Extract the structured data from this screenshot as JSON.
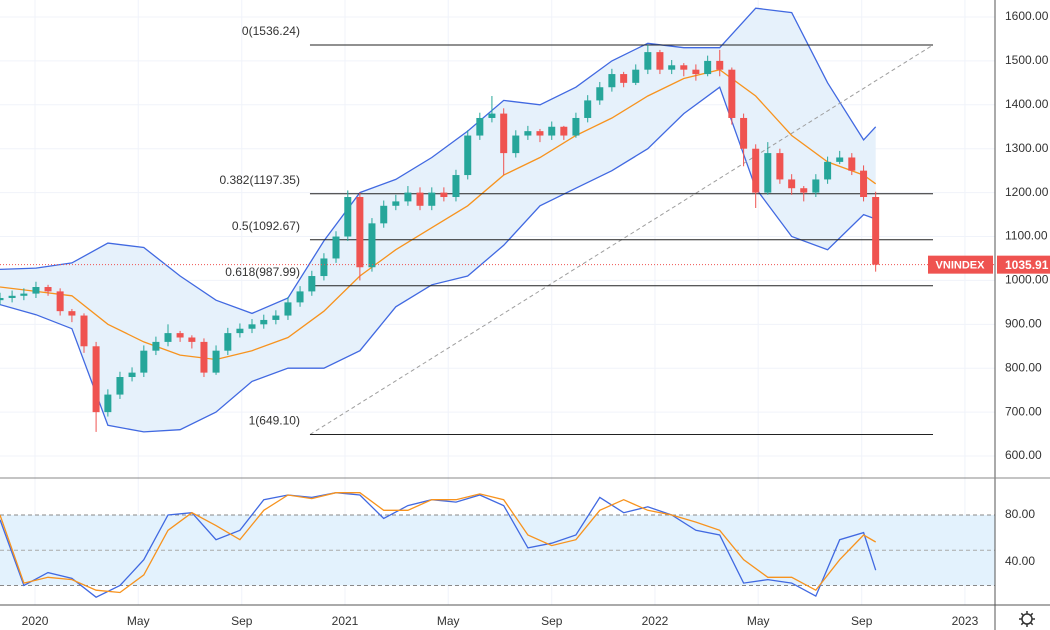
{
  "chart_data": [
    {
      "type": "candlestick",
      "symbol": "VNINDEX",
      "last_price": {
        "value": 1035.91,
        "label": "1035.91"
      },
      "up_color": "#26a69a",
      "down_color": "#ef5350",
      "xlim": [
        2019.887,
        2023.097
      ],
      "ylim": [
        550,
        1638.7
      ],
      "yticks": [
        {
          "value": 600,
          "label": "600.00"
        },
        {
          "value": 700,
          "label": "700.00"
        },
        {
          "value": 800,
          "label": "800.00"
        },
        {
          "value": 900,
          "label": "900.00"
        },
        {
          "value": 1000,
          "label": "1000.00"
        },
        {
          "value": 1100,
          "label": "1100.00"
        },
        {
          "value": 1200,
          "label": "1200.00"
        },
        {
          "value": 1300,
          "label": "1300.00"
        },
        {
          "value": 1400,
          "label": "1400.00"
        },
        {
          "value": 1500,
          "label": "1500.00"
        },
        {
          "value": 1600,
          "label": "1600.00"
        }
      ],
      "grid": true,
      "x": [
        2019.887,
        2019.926,
        2019.964,
        2020.003,
        2020.042,
        2020.081,
        2020.119,
        2020.158,
        2020.197,
        2020.235,
        2020.274,
        2020.313,
        2020.351,
        2020.39,
        2020.429,
        2020.468,
        2020.506,
        2020.545,
        2020.584,
        2020.622,
        2020.661,
        2020.7,
        2020.738,
        2020.777,
        2020.816,
        2020.855,
        2020.893,
        2020.932,
        2020.971,
        2021.009,
        2021.048,
        2021.087,
        2021.125,
        2021.164,
        2021.203,
        2021.242,
        2021.28,
        2021.319,
        2021.358,
        2021.396,
        2021.435,
        2021.474,
        2021.512,
        2021.551,
        2021.59,
        2021.629,
        2021.667,
        2021.706,
        2021.745,
        2021.783,
        2021.822,
        2021.861,
        2021.899,
        2021.938,
        2021.977,
        2022.016,
        2022.054,
        2022.093,
        2022.132,
        2022.17,
        2022.209,
        2022.248,
        2022.286,
        2022.325,
        2022.364,
        2022.403,
        2022.441,
        2022.48,
        2022.519,
        2022.557,
        2022.596,
        2022.635,
        2022.673,
        2022.712
      ],
      "open": [
        955,
        960,
        965,
        970,
        985,
        975,
        930,
        920,
        850,
        700,
        740,
        780,
        790,
        840,
        860,
        880,
        870,
        860,
        790,
        840,
        880,
        890,
        900,
        910,
        920,
        950,
        975,
        1010,
        1050,
        1100,
        1190,
        1030,
        1130,
        1170,
        1180,
        1200,
        1170,
        1200,
        1190,
        1240,
        1330,
        1370,
        1380,
        1290,
        1330,
        1340,
        1330,
        1350,
        1330,
        1370,
        1410,
        1440,
        1470,
        1450,
        1480,
        1520,
        1480,
        1490,
        1480,
        1470,
        1500,
        1480,
        1370,
        1300,
        1200,
        1290,
        1230,
        1210,
        1200,
        1230,
        1270,
        1280,
        1250,
        1190
      ],
      "high": [
        972,
        977,
        982,
        997,
        990,
        982,
        935,
        925,
        860,
        752,
        792,
        802,
        852,
        872,
        900,
        885,
        875,
        868,
        852,
        892,
        902,
        912,
        922,
        932,
        962,
        987,
        1022,
        1062,
        1112,
        1205,
        1200,
        1142,
        1182,
        1195,
        1215,
        1212,
        1212,
        1212,
        1252,
        1342,
        1382,
        1420,
        1392,
        1342,
        1352,
        1345,
        1362,
        1352,
        1382,
        1422,
        1452,
        1482,
        1475,
        1492,
        1536,
        1525,
        1502,
        1495,
        1492,
        1512,
        1525,
        1485,
        1380,
        1310,
        1315,
        1300,
        1242,
        1215,
        1242,
        1282,
        1295,
        1290,
        1262,
        1202
      ],
      "low": [
        945,
        950,
        955,
        960,
        965,
        920,
        905,
        835,
        655,
        690,
        730,
        770,
        780,
        830,
        850,
        860,
        845,
        780,
        785,
        830,
        870,
        880,
        890,
        900,
        910,
        940,
        965,
        1000,
        1040,
        1090,
        1000,
        1020,
        1120,
        1160,
        1170,
        1160,
        1160,
        1180,
        1180,
        1230,
        1320,
        1360,
        1240,
        1280,
        1320,
        1315,
        1320,
        1320,
        1325,
        1360,
        1400,
        1430,
        1440,
        1445,
        1470,
        1470,
        1470,
        1465,
        1455,
        1465,
        1465,
        1355,
        1260,
        1165,
        1195,
        1220,
        1195,
        1180,
        1190,
        1220,
        1265,
        1240,
        1180,
        1020
      ],
      "close": [
        960,
        965,
        970,
        985,
        975,
        930,
        920,
        850,
        700,
        740,
        780,
        790,
        840,
        860,
        880,
        870,
        860,
        790,
        840,
        880,
        890,
        900,
        910,
        920,
        950,
        975,
        1010,
        1050,
        1100,
        1190,
        1030,
        1130,
        1170,
        1180,
        1200,
        1170,
        1200,
        1190,
        1240,
        1330,
        1370,
        1380,
        1290,
        1330,
        1340,
        1330,
        1350,
        1330,
        1370,
        1410,
        1440,
        1470,
        1450,
        1480,
        1520,
        1480,
        1490,
        1480,
        1470,
        1500,
        1480,
        1370,
        1300,
        1200,
        1290,
        1230,
        1210,
        1200,
        1230,
        1270,
        1280,
        1250,
        1190,
        1035.91
      ],
      "bollinger": {
        "color": "#4169e1",
        "middle_color": "#f7931e",
        "fill_color": "#e6f1fb",
        "x": [
          2019.887,
          2020.003,
          2020.119,
          2020.235,
          2020.351,
          2020.468,
          2020.584,
          2020.7,
          2020.816,
          2020.932,
          2021.048,
          2021.164,
          2021.28,
          2021.396,
          2021.512,
          2021.629,
          2021.745,
          2021.861,
          2021.977,
          2022.093,
          2022.209,
          2022.325,
          2022.441,
          2022.557,
          2022.673,
          2022.712
        ],
        "upper": [
          1025,
          1028,
          1040,
          1085,
          1075,
          1010,
          955,
          925,
          960,
          1090,
          1200,
          1230,
          1280,
          1340,
          1410,
          1400,
          1440,
          1500,
          1540,
          1530,
          1530,
          1620,
          1610,
          1450,
          1320,
          1350
        ],
        "middle": [
          985,
          975,
          965,
          900,
          860,
          830,
          820,
          840,
          870,
          930,
          1010,
          1070,
          1120,
          1170,
          1240,
          1280,
          1330,
          1370,
          1420,
          1460,
          1480,
          1420,
          1330,
          1270,
          1240,
          1220
        ],
        "lower": [
          945,
          922,
          890,
          670,
          655,
          660,
          700,
          770,
          800,
          800,
          840,
          940,
          990,
          1010,
          1080,
          1170,
          1210,
          1250,
          1300,
          1380,
          1440,
          1210,
          1100,
          1070,
          1150,
          1140
        ]
      },
      "trendline": {
        "color": "#9e9e9e",
        "x": [
          2020.887,
          2022.897
        ],
        "values": [
          649.1,
          1536.24
        ]
      },
      "fib_levels": [
        {
          "value": 1536.24,
          "label": "0(1536.24)"
        },
        {
          "value": 1197.35,
          "label": "0.382(1197.35)"
        },
        {
          "value": 1092.67,
          "label": "0.5(1092.67)"
        },
        {
          "value": 987.99,
          "label": "0.618(987.99)"
        },
        {
          "value": 649.1,
          "label": "1(649.10)"
        }
      ]
    },
    {
      "type": "line",
      "xlim": [
        2019.887,
        2023.097
      ],
      "ylim": [
        3.4,
        111.5
      ],
      "yticks": [
        {
          "value": 40,
          "label": "40.00"
        },
        {
          "value": 80,
          "label": "80.00"
        }
      ],
      "band": [
        20,
        80
      ],
      "midline": 50,
      "band_color": "#e3f2fd",
      "xticks": [
        {
          "value": 2020,
          "label": "2020"
        },
        {
          "value": 2020.333,
          "label": "May"
        },
        {
          "value": 2020.667,
          "label": "Sep"
        },
        {
          "value": 2021,
          "label": "2021"
        },
        {
          "value": 2021.333,
          "label": "May"
        },
        {
          "value": 2021.667,
          "label": "Sep"
        },
        {
          "value": 2022,
          "label": "2022"
        },
        {
          "value": 2022.333,
          "label": "May"
        },
        {
          "value": 2022.667,
          "label": "Sep"
        },
        {
          "value": 2023,
          "label": "2023"
        }
      ],
      "x": [
        2019.887,
        2019.964,
        2020.042,
        2020.119,
        2020.197,
        2020.274,
        2020.351,
        2020.429,
        2020.506,
        2020.584,
        2020.661,
        2020.738,
        2020.816,
        2020.893,
        2020.971,
        2021.048,
        2021.125,
        2021.203,
        2021.28,
        2021.358,
        2021.435,
        2021.512,
        2021.59,
        2021.667,
        2021.745,
        2021.822,
        2021.899,
        2021.977,
        2022.054,
        2022.132,
        2022.209,
        2022.286,
        2022.364,
        2022.441,
        2022.519,
        2022.596,
        2022.673,
        2022.712
      ],
      "lines": [
        {
          "color": "#4169e1",
          "values": [
            76,
            20,
            31,
            26,
            10,
            20,
            42,
            80,
            82,
            59,
            67,
            93,
            97,
            95,
            99,
            97,
            77,
            88,
            93,
            91,
            97,
            88,
            52,
            56,
            63,
            95,
            82,
            87,
            80,
            67,
            63,
            22,
            25,
            22,
            11,
            59,
            65,
            33
          ]
        },
        {
          "color": "#f7931e",
          "values": [
            80,
            22,
            27,
            25,
            16,
            14,
            29,
            67,
            82,
            71,
            59,
            84,
            97,
            94,
            99,
            99,
            84,
            84,
            93,
            93,
            98,
            93,
            63,
            54,
            59,
            84,
            93,
            84,
            80,
            74,
            67,
            42,
            27,
            27,
            16,
            42,
            63,
            57
          ]
        }
      ]
    }
  ]
}
